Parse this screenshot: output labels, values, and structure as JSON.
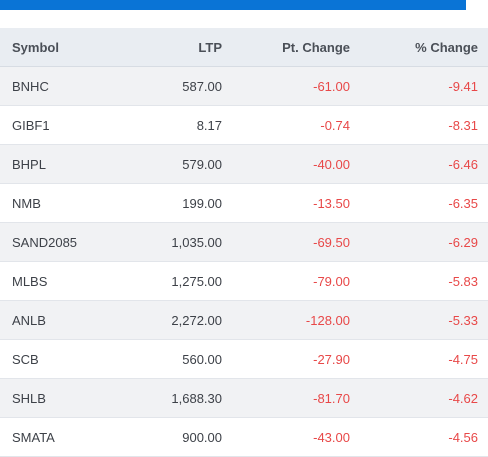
{
  "colors": {
    "accent_bar": "#0a74d6",
    "header_bg": "#e9edf2",
    "stripe_bg": "#f1f2f4",
    "negative": "#e84848"
  },
  "table": {
    "headers": {
      "symbol": "Symbol",
      "ltp": "LTP",
      "pt_change": "Pt. Change",
      "pct_change": "% Change"
    },
    "rows": [
      {
        "symbol": "BNHC",
        "ltp": "587.00",
        "pt_change": "-61.00",
        "pct_change": "-9.41"
      },
      {
        "symbol": "GIBF1",
        "ltp": "8.17",
        "pt_change": "-0.74",
        "pct_change": "-8.31"
      },
      {
        "symbol": "BHPL",
        "ltp": "579.00",
        "pt_change": "-40.00",
        "pct_change": "-6.46"
      },
      {
        "symbol": "NMB",
        "ltp": "199.00",
        "pt_change": "-13.50",
        "pct_change": "-6.35"
      },
      {
        "symbol": "SAND2085",
        "ltp": "1,035.00",
        "pt_change": "-69.50",
        "pct_change": "-6.29"
      },
      {
        "symbol": "MLBS",
        "ltp": "1,275.00",
        "pt_change": "-79.00",
        "pct_change": "-5.83"
      },
      {
        "symbol": "ANLB",
        "ltp": "2,272.00",
        "pt_change": "-128.00",
        "pct_change": "-5.33"
      },
      {
        "symbol": "SCB",
        "ltp": "560.00",
        "pt_change": "-27.90",
        "pct_change": "-4.75"
      },
      {
        "symbol": "SHLB",
        "ltp": "1,688.30",
        "pt_change": "-81.70",
        "pct_change": "-4.62"
      },
      {
        "symbol": "SMATA",
        "ltp": "900.00",
        "pt_change": "-43.00",
        "pct_change": "-4.56"
      }
    ]
  }
}
